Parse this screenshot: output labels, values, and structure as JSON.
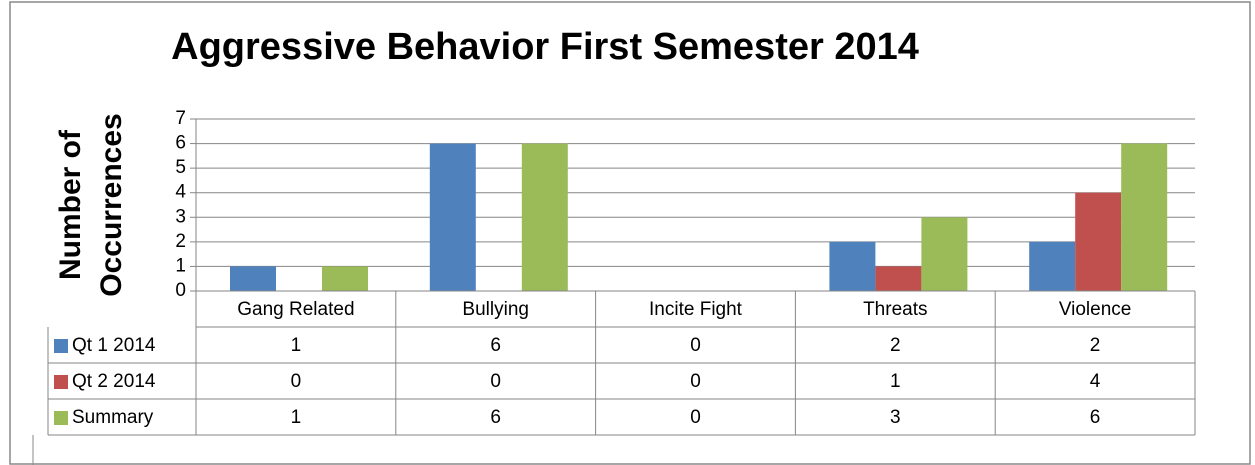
{
  "chart_data": {
    "type": "bar",
    "title": "Aggressive Behavior First Semester 2014",
    "y_label": [
      "Number of",
      "Occurrences"
    ],
    "categories": [
      "Gang Related",
      "Bullying",
      "Incite Fight",
      "Threats",
      "Violence"
    ],
    "series": [
      {
        "name": "Qt 1 2014",
        "color": "#4f81bd",
        "values": [
          1,
          6,
          0,
          2,
          2
        ]
      },
      {
        "name": "Qt 2 2014",
        "color": "#c0504d",
        "values": [
          0,
          0,
          0,
          1,
          4
        ]
      },
      {
        "name": "Summary",
        "color": "#9bbb59",
        "values": [
          1,
          6,
          0,
          3,
          6
        ]
      }
    ],
    "ylim": [
      0,
      7
    ],
    "yticks": [
      0,
      1,
      2,
      3,
      4,
      5,
      6,
      7
    ],
    "grid": true,
    "data_table": true
  }
}
